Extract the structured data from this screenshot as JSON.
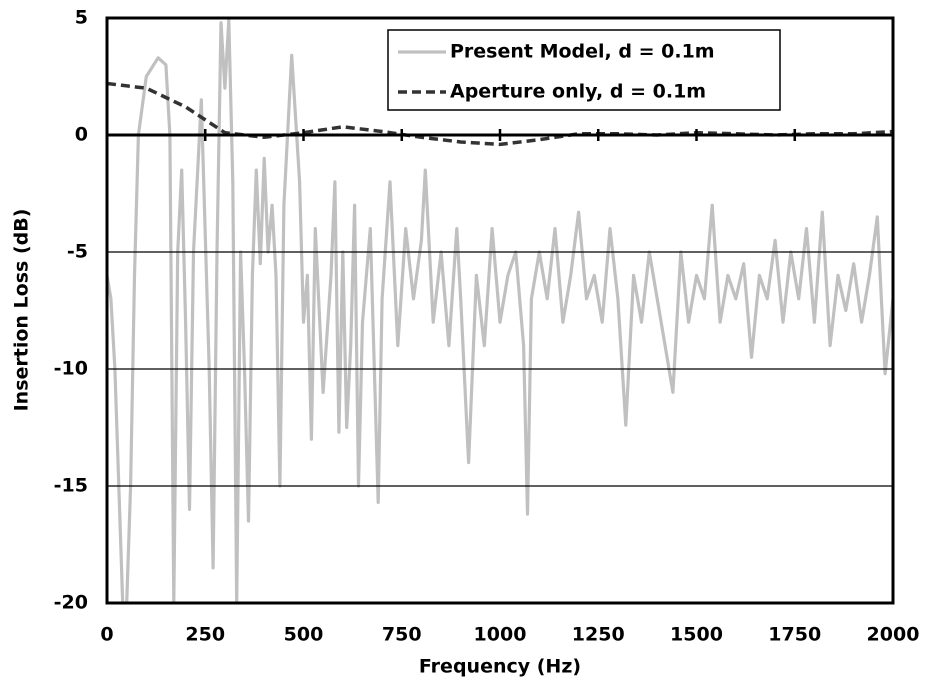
{
  "chart_data": {
    "type": "line",
    "x_label": "Frequency (Hz)",
    "y_label": "Insertion Loss (dB)",
    "xlim": [
      0,
      2000
    ],
    "xticks": [
      0,
      250,
      500,
      750,
      1000,
      1250,
      1500,
      1750,
      2000
    ],
    "ylim": [
      -20,
      5
    ],
    "yticks": [
      -20,
      -15,
      -10,
      -5,
      0,
      5
    ],
    "grid": true,
    "legend": "upper right",
    "series": [
      {
        "name": "Present Model, d = 0.1m",
        "color": "#c0c0c0",
        "style": "solid",
        "x": [
          0,
          10,
          20,
          30,
          40,
          50,
          60,
          70,
          80,
          100,
          130,
          150,
          160,
          170,
          180,
          190,
          200,
          210,
          220,
          240,
          260,
          270,
          280,
          290,
          300,
          310,
          320,
          330,
          340,
          350,
          360,
          370,
          380,
          390,
          400,
          410,
          420,
          430,
          440,
          450,
          470,
          490,
          500,
          510,
          520,
          530,
          550,
          570,
          580,
          590,
          600,
          610,
          620,
          630,
          640,
          650,
          670,
          690,
          700,
          720,
          740,
          760,
          780,
          800,
          810,
          830,
          850,
          870,
          890,
          900,
          920,
          940,
          960,
          980,
          1000,
          1020,
          1040,
          1060,
          1070,
          1080,
          1100,
          1120,
          1140,
          1160,
          1180,
          1200,
          1220,
          1240,
          1260,
          1280,
          1300,
          1320,
          1340,
          1360,
          1380,
          1400,
          1420,
          1440,
          1460,
          1480,
          1500,
          1520,
          1540,
          1560,
          1580,
          1600,
          1620,
          1640,
          1660,
          1680,
          1700,
          1720,
          1740,
          1760,
          1780,
          1800,
          1820,
          1840,
          1860,
          1880,
          1900,
          1920,
          1940,
          1960,
          1980,
          2000
        ],
        "values": [
          -6,
          -7,
          -10,
          -15,
          -20,
          -20,
          -15,
          -6,
          0,
          2.5,
          3.3,
          3,
          0,
          -20,
          -5,
          -1.5,
          -8,
          -16,
          -5,
          1.5,
          -10,
          -18.5,
          -5,
          4.8,
          2,
          4.9,
          -2,
          -20,
          -5,
          -10,
          -16.5,
          -6,
          -1.5,
          -5.5,
          -1,
          -5,
          -3,
          -6,
          -15,
          -3,
          3.4,
          -2,
          -8,
          -6,
          -13,
          -4,
          -11,
          -6,
          -2,
          -12.7,
          -5,
          -12.5,
          -9,
          -3,
          -15,
          -8,
          -4,
          -15.7,
          -7,
          -2,
          -9,
          -4,
          -7,
          -4.5,
          -1.5,
          -8,
          -5,
          -9,
          -4,
          -7,
          -14,
          -6,
          -9,
          -4,
          -8,
          -6,
          -5,
          -9,
          -16.2,
          -7,
          -5,
          -7,
          -4,
          -8,
          -6,
          -3.3,
          -7,
          -6,
          -8,
          -4,
          -7,
          -12.4,
          -6,
          -8,
          -5,
          -7,
          -9,
          -11,
          -5,
          -8,
          -6,
          -7,
          -3,
          -8,
          -6,
          -7,
          -5.5,
          -9.5,
          -6,
          -7,
          -4.5,
          -8,
          -5,
          -7,
          -4,
          -8,
          -3.3,
          -9,
          -6,
          -7.5,
          -5.5,
          -8,
          -6,
          -3.5,
          -10.2,
          -7
        ]
      },
      {
        "name": "Aperture only, d = 0.1m",
        "color": "#333333",
        "style": "dashed",
        "x": [
          0,
          100,
          200,
          300,
          400,
          500,
          600,
          700,
          800,
          900,
          1000,
          1100,
          1200,
          1300,
          1400,
          1500,
          1600,
          1700,
          1800,
          1900,
          2000
        ],
        "values": [
          2.2,
          2.0,
          1.2,
          0.1,
          -0.1,
          0.1,
          0.35,
          0.15,
          -0.1,
          -0.3,
          -0.4,
          -0.2,
          0.05,
          0.05,
          0,
          0.1,
          0.05,
          0,
          0.05,
          0.05,
          0.15
        ]
      }
    ]
  }
}
